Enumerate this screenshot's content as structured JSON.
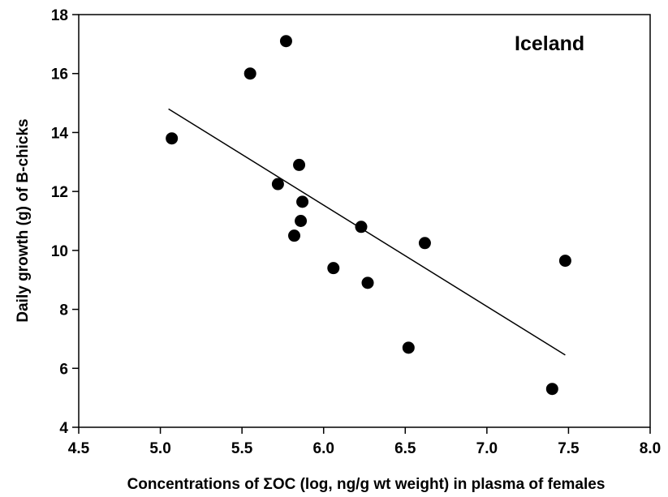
{
  "chart_data": {
    "type": "scatter",
    "title": "",
    "annotation": "Iceland",
    "xlabel": "Concentrations of ΣOC (log, ng/g wt weight) in plasma of females",
    "ylabel": "Daily growth (g) of B-chicks",
    "xlim": [
      4.5,
      8.0
    ],
    "ylim": [
      4,
      18
    ],
    "x_ticks": [
      "4.5",
      "5.0",
      "5.5",
      "6.0",
      "6.5",
      "7.0",
      "7.5",
      "8.0"
    ],
    "y_ticks": [
      "4",
      "6",
      "8",
      "10",
      "12",
      "14",
      "16",
      "18"
    ],
    "grid": false,
    "points": [
      {
        "x": 5.07,
        "y": 13.8
      },
      {
        "x": 5.55,
        "y": 16.0
      },
      {
        "x": 5.77,
        "y": 17.1
      },
      {
        "x": 5.72,
        "y": 12.25
      },
      {
        "x": 5.85,
        "y": 12.9
      },
      {
        "x": 5.87,
        "y": 11.65
      },
      {
        "x": 5.86,
        "y": 11.0
      },
      {
        "x": 5.82,
        "y": 10.5
      },
      {
        "x": 6.06,
        "y": 9.4
      },
      {
        "x": 6.23,
        "y": 10.8
      },
      {
        "x": 6.27,
        "y": 8.9
      },
      {
        "x": 6.52,
        "y": 6.7
      },
      {
        "x": 6.62,
        "y": 10.25
      },
      {
        "x": 7.4,
        "y": 5.3
      },
      {
        "x": 7.48,
        "y": 9.65
      }
    ],
    "regression_line": {
      "x": [
        5.05,
        7.48
      ],
      "y": [
        14.8,
        6.45
      ]
    },
    "marker_color": "#000000",
    "line_color": "#000000"
  }
}
